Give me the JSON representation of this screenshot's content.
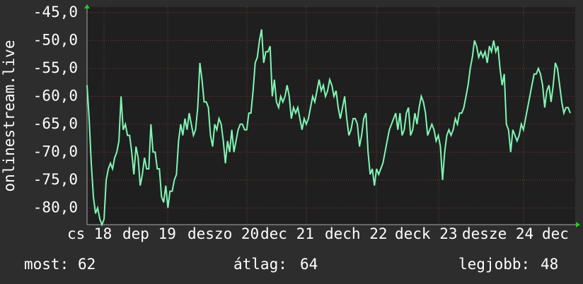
{
  "chart_data": {
    "type": "line",
    "y_label": "onlinestream.live",
    "x_labels": [
      "cs 18",
      "dep 19",
      "deszo 20",
      "dec 21",
      "dech 22",
      "deck 23",
      "desze 24",
      "dec"
    ],
    "ylim": [
      -83,
      -44
    ],
    "yticks": [
      {
        "value": -45,
        "label": "-45,0"
      },
      {
        "value": -50,
        "label": "-50,0"
      },
      {
        "value": -55,
        "label": "-55,0"
      },
      {
        "value": -60,
        "label": "-60,0"
      },
      {
        "value": -65,
        "label": "-65,0"
      },
      {
        "value": -70,
        "label": "-70,0"
      },
      {
        "value": -75,
        "label": "-75,0"
      },
      {
        "value": -80,
        "label": "-80,0"
      }
    ],
    "grid": true,
    "color": "#80f5b4",
    "values": [
      -58,
      -64,
      -72,
      -78,
      -81,
      -80,
      -82,
      -83,
      -82,
      -75,
      -73,
      -72,
      -73,
      -71,
      -70,
      -68,
      -60,
      -66,
      -65,
      -67,
      -67,
      -70,
      -74,
      -69,
      -71,
      -76,
      -74,
      -71,
      -73,
      -73,
      -65,
      -70,
      -70,
      -73,
      -73,
      -78,
      -79,
      -76,
      -80,
      -77,
      -77,
      -75,
      -74,
      -68,
      -65,
      -67,
      -64,
      -66,
      -63,
      -65,
      -67,
      -66,
      -62,
      -54,
      -57,
      -61,
      -61,
      -62,
      -67,
      -69,
      -65,
      -66,
      -64,
      -65,
      -68,
      -72,
      -68,
      -70,
      -66,
      -70,
      -68,
      -66,
      -65,
      -65,
      -66,
      -66,
      -63,
      -63,
      -59,
      -54,
      -53,
      -50,
      -48,
      -54,
      -52,
      -52,
      -51,
      -60,
      -57,
      -61,
      -62,
      -60,
      -61,
      -60,
      -58,
      -60,
      -64,
      -62,
      -63,
      -62,
      -64,
      -66,
      -64,
      -65,
      -64,
      -62,
      -60,
      -61,
      -59,
      -57,
      -59,
      -58,
      -60,
      -59,
      -57,
      -58,
      -60,
      -59,
      -62,
      -64,
      -62,
      -60,
      -64,
      -67,
      -66,
      -64,
      -64,
      -65,
      -69,
      -67,
      -64,
      -63,
      -70,
      -74,
      -73,
      -76,
      -73,
      -74,
      -73,
      -72,
      -70,
      -68,
      -66,
      -65,
      -64,
      -63,
      -66,
      -63,
      -67,
      -66,
      -63,
      -62,
      -67,
      -66,
      -63,
      -65,
      -62,
      -60,
      -61,
      -63,
      -67,
      -66,
      -65,
      -66,
      -68,
      -67,
      -69,
      -75,
      -70,
      -67,
      -66,
      -67,
      -66,
      -64,
      -65,
      -63,
      -63,
      -62,
      -60,
      -58,
      -55,
      -53,
      -50,
      -51,
      -53,
      -52,
      -53,
      -52,
      -54,
      -51,
      -52,
      -50,
      -52,
      -51,
      -55,
      -58,
      -56,
      -65,
      -66,
      -70,
      -66,
      -67,
      -68,
      -67,
      -65,
      -66,
      -64,
      -62,
      -60,
      -58,
      -56,
      -56,
      -55,
      -56,
      -58,
      -62,
      -59,
      -58,
      -61,
      -58,
      -54,
      -55,
      -58,
      -61,
      -63,
      -62,
      -62,
      -63
    ]
  },
  "footer": {
    "current": {
      "label": "most:",
      "value": 62
    },
    "average": {
      "label": "átlag:",
      "value": 64
    },
    "best": {
      "label": "legjobb:",
      "value": 48
    }
  }
}
